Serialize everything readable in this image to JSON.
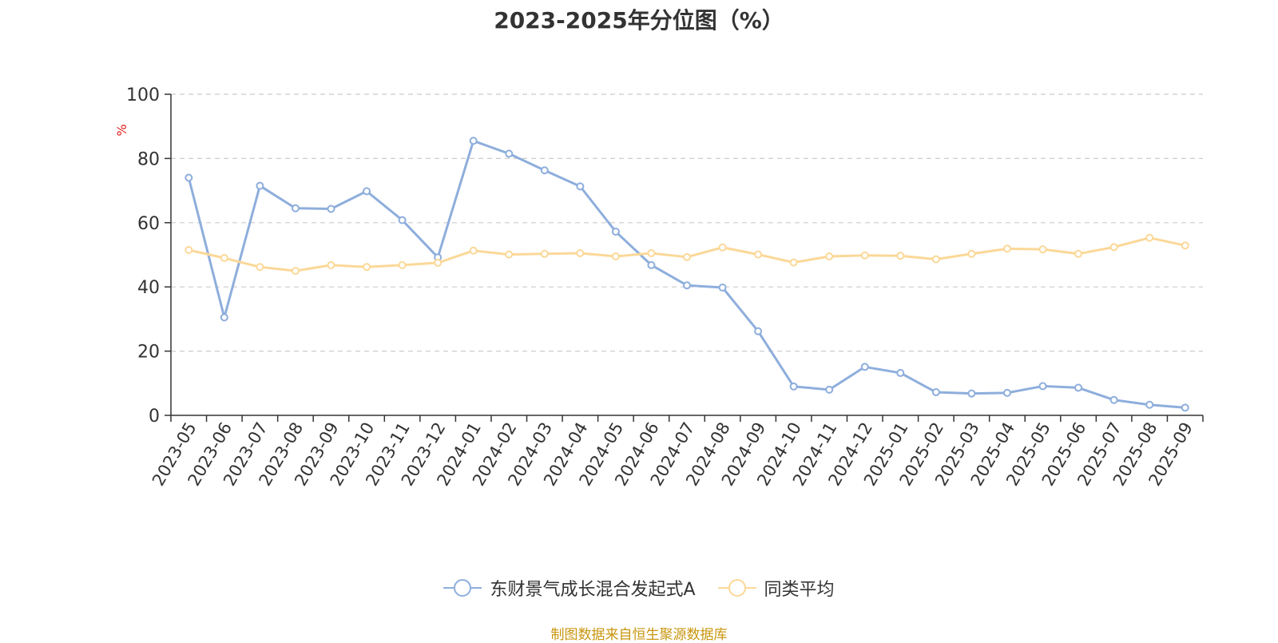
{
  "chart_data": {
    "type": "line",
    "title": "2023-2025年分位图（%）",
    "ylabel": "%",
    "ylim": [
      0,
      100
    ],
    "yticks": [
      0,
      20,
      40,
      60,
      80,
      100
    ],
    "grid": true,
    "legend_position": "bottom-center",
    "categories": [
      "2023-05",
      "2023-06",
      "2023-07",
      "2023-08",
      "2023-09",
      "2023-10",
      "2023-11",
      "2023-12",
      "2024-01",
      "2024-02",
      "2024-03",
      "2024-04",
      "2024-05",
      "2024-06",
      "2024-07",
      "2024-08",
      "2024-09",
      "2024-10",
      "2024-11",
      "2024-12",
      "2025-01",
      "2025-02",
      "2025-03",
      "2025-04",
      "2025-05",
      "2025-06",
      "2025-07",
      "2025-08",
      "2025-09"
    ],
    "series": [
      {
        "name": "东财景气成长混合发起式A",
        "color": "#8eaedc",
        "values": [
          74,
          30.5,
          71.5,
          64.5,
          64.3,
          69.8,
          60.8,
          49.2,
          85.5,
          81.5,
          76.3,
          71.3,
          57.2,
          46.8,
          40.5,
          39.8,
          26.2,
          9,
          8,
          15.1,
          13.2,
          7.2,
          6.8,
          7,
          9.1,
          8.6,
          4.8,
          3.3,
          2.4
        ]
      },
      {
        "name": "同类平均",
        "color": "#fbd898",
        "values": [
          51.5,
          49,
          46.2,
          45,
          46.8,
          46.2,
          46.8,
          47.5,
          51.3,
          50.1,
          50.3,
          50.5,
          49.5,
          50.5,
          49.3,
          52.3,
          50.1,
          47.6,
          49.5,
          49.8,
          49.7,
          48.6,
          50.3,
          51.9,
          51.7,
          50.3,
          52.4,
          55.3,
          52.9
        ]
      }
    ]
  },
  "footer": {
    "source": "制图数据来自恒生聚源数据库"
  }
}
